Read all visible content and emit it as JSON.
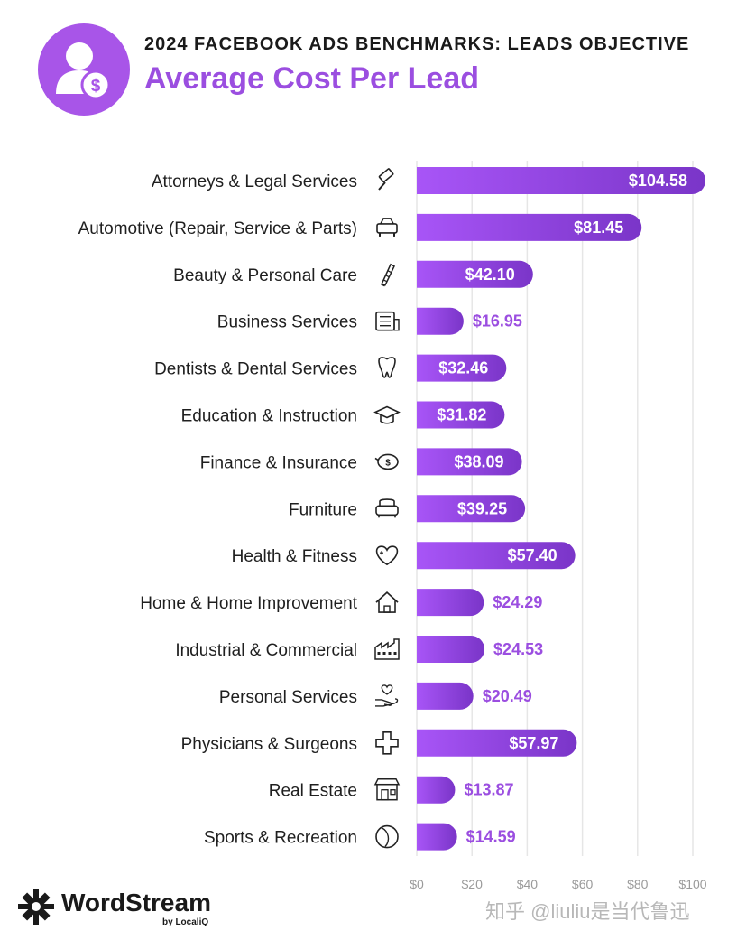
{
  "header": {
    "supertitle": "2024 FACEBOOK ADS BENCHMARKS: LEADS OBJECTIVE",
    "title": "Average Cost Per Lead",
    "badge_icon": "user-dollar-icon"
  },
  "colors": {
    "bar_start": "#a855f7",
    "bar_end": "#7a35c8",
    "label_outside": "#9b4ee0",
    "grid": "#e6e6e6",
    "title": "#9b4ee0"
  },
  "chart_data": {
    "type": "bar",
    "orientation": "horizontal",
    "title": "Average Cost Per Lead",
    "xlabel": "",
    "ylabel": "",
    "xlim": [
      0,
      100
    ],
    "x_ticks": [
      "$0",
      "$20",
      "$40",
      "$60",
      "$80",
      "$100"
    ],
    "x_tick_values": [
      0,
      20,
      40,
      60,
      80,
      100
    ],
    "grid": true,
    "categories": [
      "Attorneys & Legal Services",
      "Automotive (Repair, Service & Parts)",
      "Beauty & Personal Care",
      "Business Services",
      "Dentists & Dental Services",
      "Education & Instruction",
      "Finance & Insurance",
      "Furniture",
      "Health & Fitness",
      "Home & Home Improvement",
      "Industrial & Commercial",
      "Personal Services",
      "Physicians & Surgeons",
      "Real Estate",
      "Sports & Recreation"
    ],
    "values": [
      104.58,
      81.45,
      42.1,
      16.95,
      32.46,
      31.82,
      38.09,
      39.25,
      57.4,
      24.29,
      24.53,
      20.49,
      57.97,
      13.87,
      14.59
    ],
    "labels": [
      "$104.58",
      "$81.45",
      "$42.10",
      "$16.95",
      "$32.46",
      "$31.82",
      "$38.09",
      "$39.25",
      "$57.40",
      "$24.29",
      "$24.53",
      "$20.49",
      "$57.97",
      "$13.87",
      "$14.59"
    ],
    "icons": [
      "gavel-icon",
      "car-icon",
      "comb-icon",
      "document-icon",
      "tooth-icon",
      "graduation-cap-icon",
      "piggy-bank-icon",
      "armchair-icon",
      "heart-icon",
      "house-icon",
      "factory-icon",
      "hand-heart-icon",
      "medical-cross-icon",
      "storefront-icon",
      "ball-icon"
    ]
  },
  "footer": {
    "logo_text": "WordStream",
    "logo_sub": "by LocaliQ",
    "watermark": "知乎 @liuliu是当代鲁迅"
  }
}
